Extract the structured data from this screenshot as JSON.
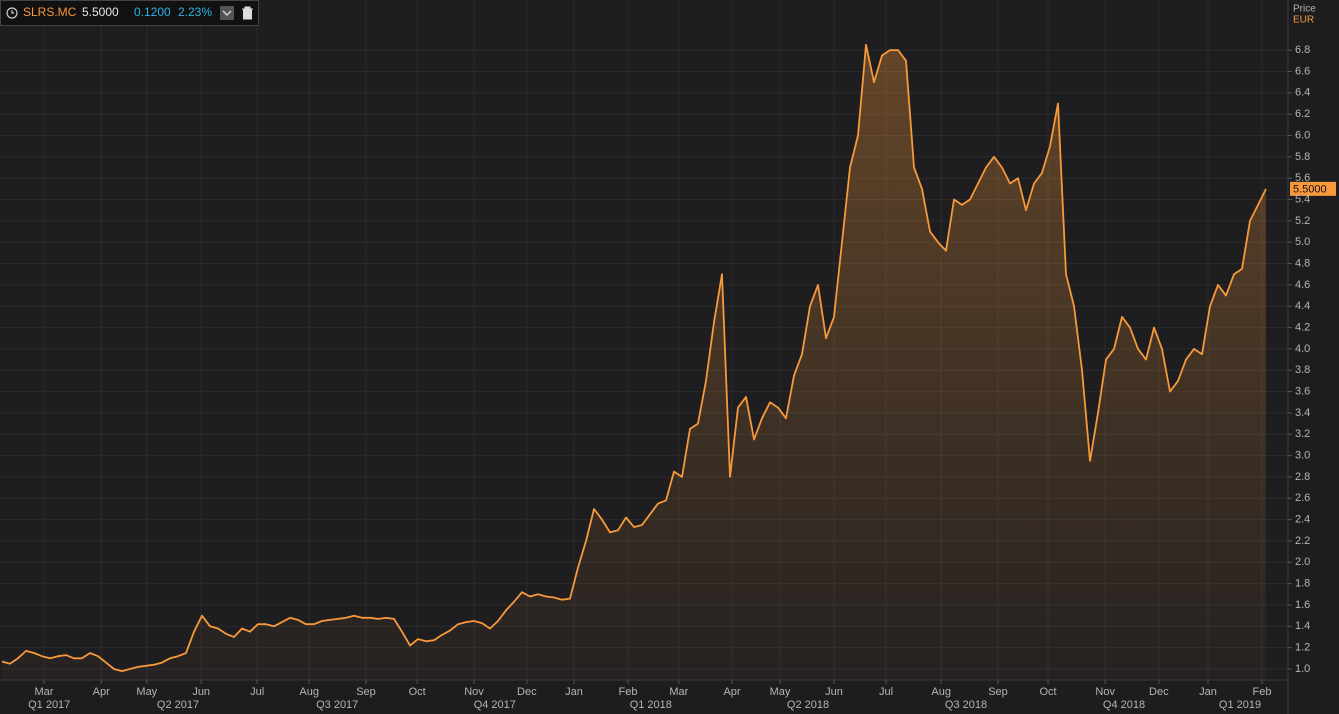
{
  "chart_data": {
    "type": "line",
    "series": [
      {
        "name": "SLRS.MC",
        "color": "#f7993a",
        "values": [
          1.07,
          1.05,
          1.1,
          1.17,
          1.15,
          1.12,
          1.1,
          1.12,
          1.13,
          1.1,
          1.1,
          1.15,
          1.12,
          1.06,
          1.0,
          0.98,
          1.0,
          1.02,
          1.03,
          1.04,
          1.06,
          1.1,
          1.12,
          1.15,
          1.35,
          1.5,
          1.4,
          1.38,
          1.33,
          1.3,
          1.38,
          1.35,
          1.42,
          1.42,
          1.4,
          1.44,
          1.48,
          1.46,
          1.42,
          1.42,
          1.45,
          1.46,
          1.47,
          1.48,
          1.5,
          1.48,
          1.48,
          1.47,
          1.48,
          1.47,
          1.35,
          1.22,
          1.28,
          1.26,
          1.27,
          1.32,
          1.36,
          1.42,
          1.44,
          1.45,
          1.43,
          1.38,
          1.45,
          1.55,
          1.63,
          1.72,
          1.68,
          1.7,
          1.68,
          1.67,
          1.65,
          1.66,
          1.95,
          2.2,
          2.5,
          2.4,
          2.28,
          2.3,
          2.42,
          2.33,
          2.35,
          2.45,
          2.55,
          2.58,
          2.85,
          2.8,
          3.25,
          3.3,
          3.7,
          4.25,
          4.7,
          2.8,
          3.45,
          3.55,
          3.15,
          3.35,
          3.5,
          3.45,
          3.35,
          3.75,
          3.95,
          4.4,
          4.6,
          4.1,
          4.3,
          5.0,
          5.7,
          6.0,
          6.85,
          6.5,
          6.75,
          6.8,
          6.8,
          6.7,
          5.7,
          5.5,
          5.1,
          5.0,
          4.92,
          5.4,
          5.35,
          5.4,
          5.55,
          5.7,
          5.8,
          5.7,
          5.55,
          5.6,
          5.3,
          5.55,
          5.65,
          5.9,
          6.3,
          4.7,
          4.4,
          3.8,
          2.95,
          3.4,
          3.9,
          4.0,
          4.3,
          4.2,
          4.0,
          3.9,
          4.2,
          4.0,
          3.6,
          3.7,
          3.9,
          4.0,
          3.95,
          4.4,
          4.6,
          4.5,
          4.7,
          4.75,
          5.2,
          5.35,
          5.5
        ]
      }
    ],
    "last_price": "5.5000",
    "change": "0.1200",
    "change_pct": "2.23%",
    "y_label": "Price",
    "y_unit": "EUR",
    "xlim": [
      -0.25,
      160.75
    ],
    "xticks": [
      {
        "value": 5.25,
        "label": "Mar"
      },
      {
        "value": 12.4,
        "label": "Apr"
      },
      {
        "value": 18.1,
        "label": "May"
      },
      {
        "value": 24.9,
        "label": "Jun"
      },
      {
        "value": 31.9,
        "label": "Jul"
      },
      {
        "value": 38.4,
        "label": "Aug"
      },
      {
        "value": 45.5,
        "label": "Sep"
      },
      {
        "value": 51.9,
        "label": "Oct"
      },
      {
        "value": 59,
        "label": "Nov"
      },
      {
        "value": 65.6,
        "label": "Dec"
      },
      {
        "value": 71.5,
        "label": "Jan"
      },
      {
        "value": 78.25,
        "label": "Feb"
      },
      {
        "value": 84.6,
        "label": "Mar"
      },
      {
        "value": 91.25,
        "label": "Apr"
      },
      {
        "value": 97.25,
        "label": "May"
      },
      {
        "value": 104,
        "label": "Jun"
      },
      {
        "value": 110.5,
        "label": "Jul"
      },
      {
        "value": 117.4,
        "label": "Aug"
      },
      {
        "value": 124.5,
        "label": "Sep"
      },
      {
        "value": 130.75,
        "label": "Oct"
      },
      {
        "value": 137.9,
        "label": "Nov"
      },
      {
        "value": 144.6,
        "label": "Dec"
      },
      {
        "value": 150.75,
        "label": "Jan"
      },
      {
        "value": 157.5,
        "label": "Feb"
      }
    ],
    "xticks2": [
      {
        "value": 5.9,
        "label": "Q1 2017"
      },
      {
        "value": 22,
        "label": "Q2 2017"
      },
      {
        "value": 41.9,
        "label": "Q3 2017"
      },
      {
        "value": 61.6,
        "label": "Q4 2017"
      },
      {
        "value": 81.1,
        "label": "Q1 2018"
      },
      {
        "value": 100.75,
        "label": "Q2 2018"
      },
      {
        "value": 120.5,
        "label": "Q3 2018"
      },
      {
        "value": 140.25,
        "label": "Q4 2018"
      },
      {
        "value": 154.75,
        "label": "Q1 2019"
      }
    ],
    "ylim": [
      0.897,
      7.27
    ],
    "yticks": [
      {
        "value": 1,
        "label": "1.0"
      },
      1.2,
      1.4,
      1.6,
      1.8,
      {
        "value": 2,
        "label": "2.0"
      },
      2.2,
      2.4,
      2.6,
      2.8,
      {
        "value": 3,
        "label": "3.0"
      },
      3.2,
      3.4,
      3.6,
      3.8,
      {
        "value": 4,
        "label": "4.0"
      },
      4.2,
      4.4,
      4.6,
      4.8,
      {
        "value": 5,
        "label": "5.0"
      },
      5.2,
      5.4,
      5.6,
      5.8,
      {
        "value": 6,
        "label": "6.0"
      },
      6.2,
      6.4,
      6.6,
      6.8
    ],
    "grid": true
  }
}
